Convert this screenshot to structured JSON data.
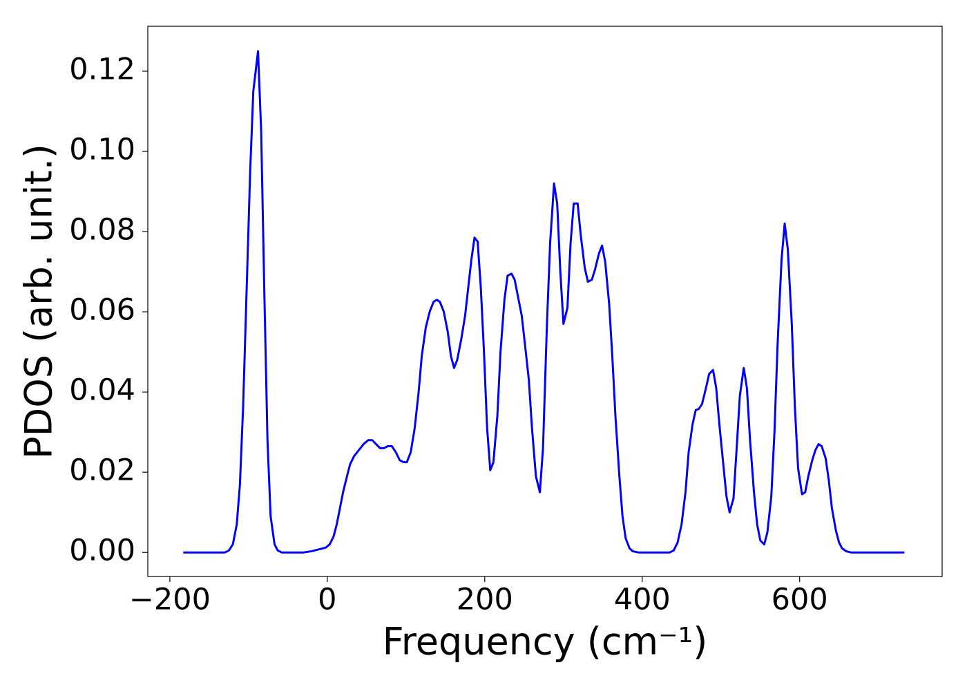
{
  "chart_data": {
    "type": "line",
    "xlabel": "Frequency (cm⁻¹)",
    "ylabel": "PDOS (arb. unit.)",
    "color": "#0000ff",
    "xlim": [
      -228,
      781
    ],
    "ylim": [
      -0.006,
      0.1312
    ],
    "xticks": [
      {
        "value": -200,
        "label": "−200"
      },
      0,
      200,
      400,
      600
    ],
    "yticks": [
      {
        "value": 0,
        "label": "0.00"
      },
      {
        "value": 0.02,
        "label": "0.02"
      },
      {
        "value": 0.04,
        "label": "0.04"
      },
      {
        "value": 0.06,
        "label": "0.06"
      },
      {
        "value": 0.08,
        "label": "0.08"
      },
      {
        "value": 0.1,
        "label": "0.10"
      },
      {
        "value": 0.12,
        "label": "0.12"
      }
    ],
    "x": [
      -183,
      -130,
      -125,
      -120,
      -115,
      -111,
      -107,
      -103,
      -98,
      -94,
      -88,
      -84,
      -80,
      -76,
      -72,
      -67,
      -63,
      -58,
      -30,
      -20,
      -10,
      -2,
      3,
      8,
      12,
      16,
      20,
      25,
      29,
      34,
      40,
      46,
      52,
      57,
      62,
      67,
      72,
      77,
      82,
      87,
      92,
      97,
      101,
      106,
      111,
      116,
      120,
      125,
      130,
      135,
      139,
      143,
      148,
      153,
      157,
      161,
      165,
      170,
      175,
      179,
      183,
      187,
      191,
      195,
      199,
      203,
      207,
      211,
      216,
      220,
      225,
      229,
      234,
      238,
      242,
      247,
      251,
      256,
      260,
      265,
      270,
      274,
      279,
      283,
      288,
      292,
      296,
      300,
      305,
      309,
      313,
      318,
      322,
      327,
      331,
      336,
      340,
      345,
      349,
      353,
      358,
      362,
      366,
      371,
      375,
      379,
      384,
      388,
      395,
      435,
      440,
      445,
      450,
      455,
      459,
      464,
      468,
      472,
      476,
      481,
      485,
      490,
      494,
      498,
      503,
      507,
      511,
      516,
      520,
      524,
      529,
      533,
      537,
      542,
      546,
      550,
      555,
      559,
      564,
      568,
      572,
      577,
      581,
      585,
      590,
      594,
      598,
      603,
      607,
      611,
      616,
      620,
      624,
      628,
      633,
      637,
      641,
      646,
      650,
      654,
      659,
      665,
      733
    ],
    "values": [
      0,
      0,
      0.0005,
      0.002,
      0.007,
      0.017,
      0.036,
      0.062,
      0.095,
      0.115,
      0.125,
      0.105,
      0.065,
      0.028,
      0.009,
      0.002,
      0.0005,
      0,
      0,
      0.0003,
      0.0008,
      0.0012,
      0.002,
      0.004,
      0.007,
      0.011,
      0.015,
      0.019,
      0.022,
      0.024,
      0.0255,
      0.027,
      0.028,
      0.028,
      0.027,
      0.026,
      0.026,
      0.0265,
      0.0265,
      0.025,
      0.023,
      0.0225,
      0.0225,
      0.025,
      0.031,
      0.04,
      0.049,
      0.056,
      0.06,
      0.0625,
      0.063,
      0.0625,
      0.06,
      0.055,
      0.049,
      0.046,
      0.048,
      0.053,
      0.059,
      0.066,
      0.073,
      0.0785,
      0.0775,
      0.066,
      0.05,
      0.031,
      0.0205,
      0.0225,
      0.034,
      0.05,
      0.063,
      0.069,
      0.0695,
      0.068,
      0.064,
      0.059,
      0.052,
      0.043,
      0.031,
      0.019,
      0.015,
      0.026,
      0.057,
      0.077,
      0.092,
      0.087,
      0.07,
      0.057,
      0.061,
      0.077,
      0.087,
      0.087,
      0.079,
      0.071,
      0.0675,
      0.068,
      0.0705,
      0.0745,
      0.0765,
      0.0725,
      0.062,
      0.049,
      0.034,
      0.019,
      0.009,
      0.0035,
      0.001,
      0.0003,
      0,
      0,
      0.0005,
      0.0025,
      0.007,
      0.015,
      0.025,
      0.032,
      0.0355,
      0.0358,
      0.037,
      0.041,
      0.0445,
      0.0455,
      0.041,
      0.032,
      0.022,
      0.014,
      0.01,
      0.0135,
      0.026,
      0.039,
      0.046,
      0.041,
      0.028,
      0.015,
      0.007,
      0.003,
      0.002,
      0.005,
      0.014,
      0.03,
      0.052,
      0.073,
      0.082,
      0.0755,
      0.057,
      0.036,
      0.021,
      0.0145,
      0.015,
      0.019,
      0.023,
      0.0255,
      0.027,
      0.0265,
      0.0235,
      0.018,
      0.011,
      0.0055,
      0.0025,
      0.001,
      0.0003,
      0,
      0
    ]
  }
}
